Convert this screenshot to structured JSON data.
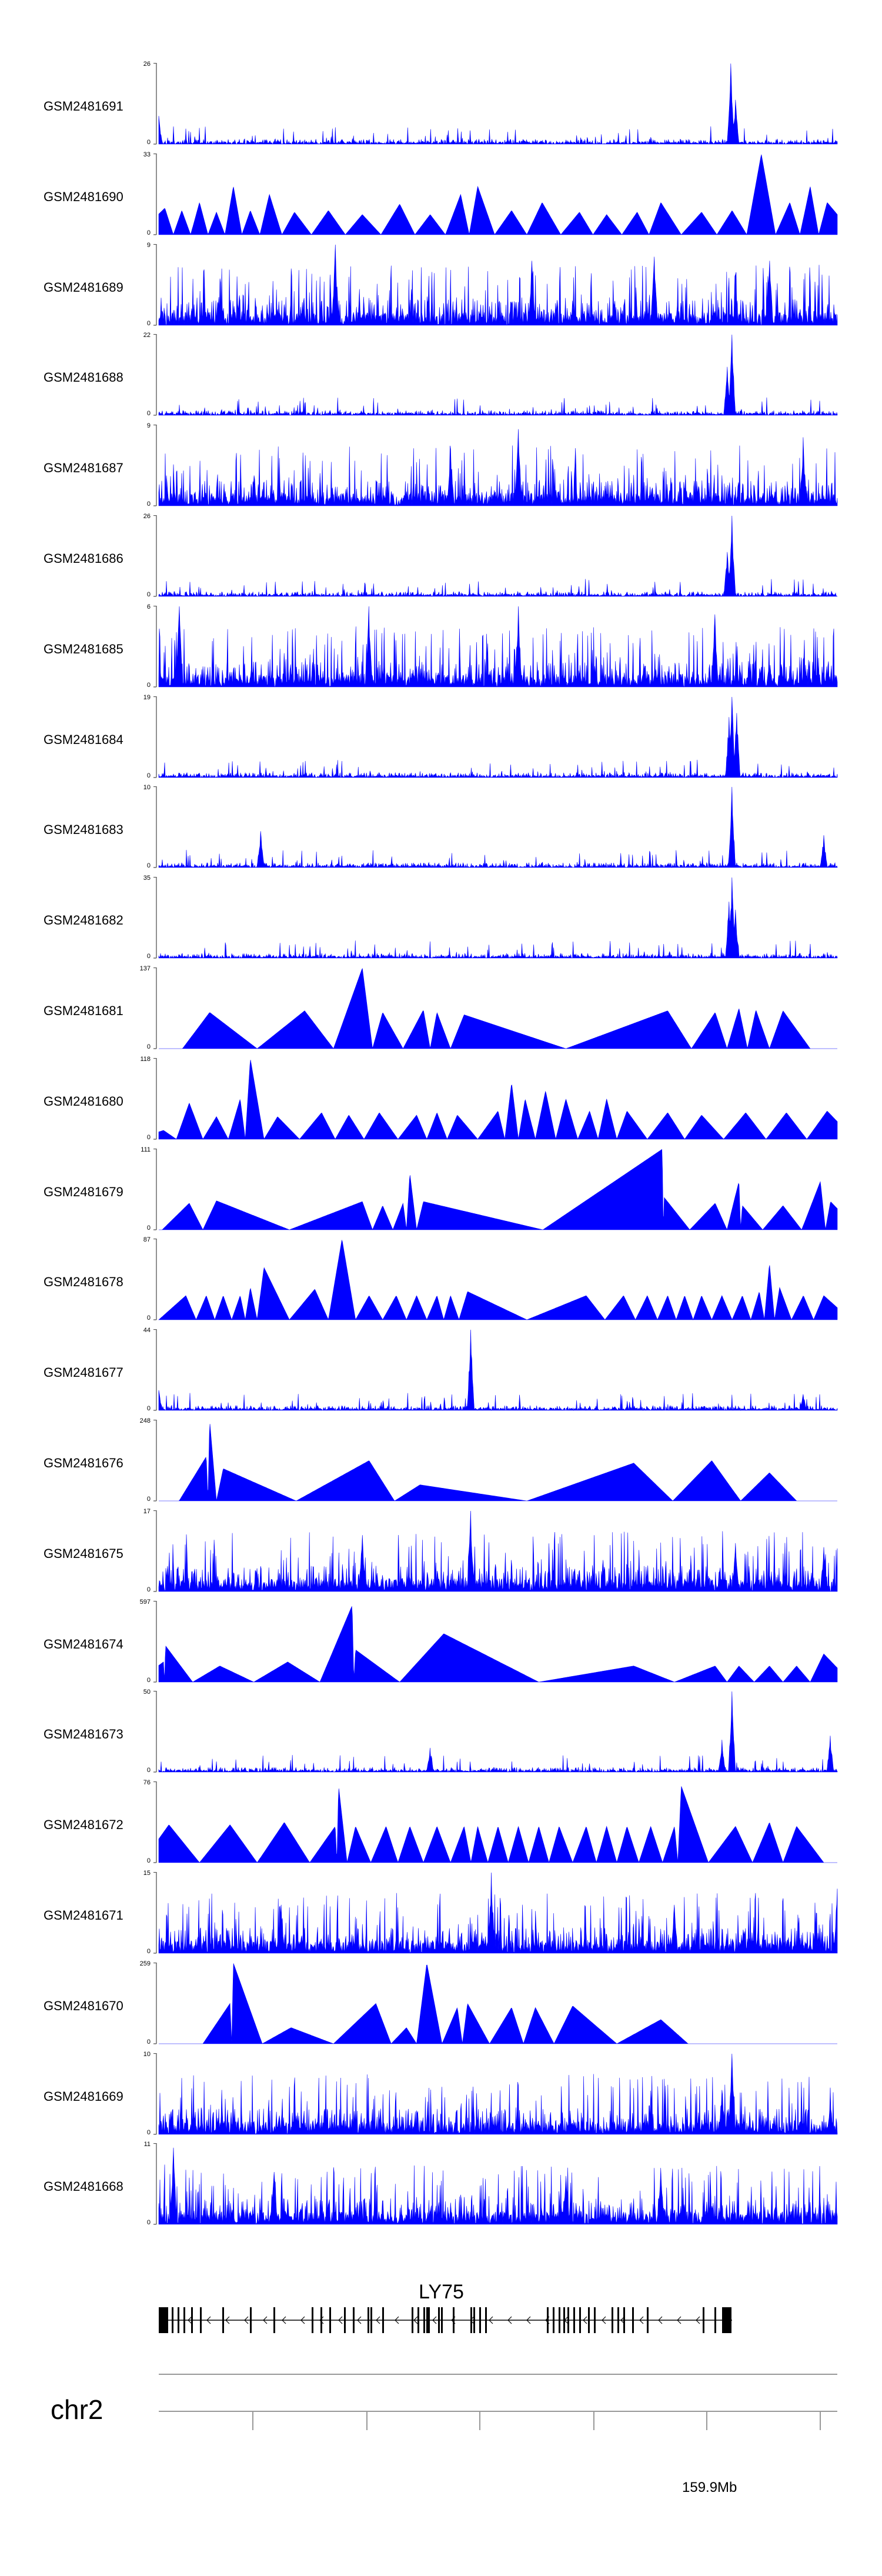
{
  "chart_data": {
    "type": "area",
    "title": "",
    "xlabel": "",
    "ylabel": "",
    "chromosome": "chr2",
    "x_tick_labels": [
      "159.9Mb"
    ],
    "gene": {
      "name": "LY75",
      "strand": "-"
    },
    "color": "#0000ff",
    "tracks": [
      {
        "name": "GSM2481691",
        "ymin": 0,
        "ymax": 26,
        "style": "spiky",
        "peaks": [
          [
            0.843,
            1.0
          ],
          [
            0.85,
            0.55
          ],
          [
            0.0,
            0.35
          ]
        ]
      },
      {
        "name": "GSM2481690",
        "ymin": 0,
        "ymax": 33,
        "style": "triangles",
        "peaks": [
          [
            0.009,
            0.33
          ],
          [
            0.034,
            0.3
          ],
          [
            0.06,
            0.4
          ],
          [
            0.085,
            0.28
          ],
          [
            0.11,
            0.6
          ],
          [
            0.135,
            0.3
          ],
          [
            0.163,
            0.5
          ],
          [
            0.2,
            0.28
          ],
          [
            0.25,
            0.3
          ],
          [
            0.3,
            0.25
          ],
          [
            0.355,
            0.38
          ],
          [
            0.4,
            0.25
          ],
          [
            0.445,
            0.5
          ],
          [
            0.47,
            0.6
          ],
          [
            0.52,
            0.3
          ],
          [
            0.565,
            0.4
          ],
          [
            0.62,
            0.28
          ],
          [
            0.66,
            0.25
          ],
          [
            0.705,
            0.28
          ],
          [
            0.74,
            0.4
          ],
          [
            0.8,
            0.28
          ],
          [
            0.845,
            0.3
          ],
          [
            0.888,
            1.0
          ],
          [
            0.93,
            0.4
          ],
          [
            0.96,
            0.6
          ],
          [
            0.985,
            0.4
          ]
        ]
      },
      {
        "name": "GSM2481689",
        "ymin": 0,
        "ymax": 9,
        "style": "dense",
        "peaks": [
          [
            0.26,
            1.0
          ],
          [
            0.55,
            0.8
          ],
          [
            0.73,
            0.85
          ],
          [
            0.9,
            0.8
          ]
        ]
      },
      {
        "name": "GSM2481688",
        "ymin": 0,
        "ymax": 22,
        "style": "spiky",
        "peaks": [
          [
            0.845,
            1.0
          ],
          [
            0.838,
            0.6
          ]
        ]
      },
      {
        "name": "GSM2481687",
        "ymin": 0,
        "ymax": 9,
        "style": "dense",
        "peaks": [
          [
            0.53,
            0.95
          ],
          [
            0.95,
            0.85
          ],
          [
            0.43,
            0.7
          ]
        ]
      },
      {
        "name": "GSM2481686",
        "ymin": 0,
        "ymax": 26,
        "style": "spiky",
        "peaks": [
          [
            0.845,
            1.0
          ],
          [
            0.838,
            0.55
          ]
        ]
      },
      {
        "name": "GSM2481685",
        "ymin": 0,
        "ymax": 6,
        "style": "dense",
        "peaks": [
          [
            0.03,
            1.0
          ],
          [
            0.31,
            1.0
          ],
          [
            0.53,
            1.0
          ],
          [
            0.82,
            0.9
          ]
        ]
      },
      {
        "name": "GSM2481684",
        "ymin": 0,
        "ymax": 19,
        "style": "spiky",
        "peaks": [
          [
            0.845,
            1.0
          ],
          [
            0.84,
            0.75
          ],
          [
            0.852,
            0.8
          ]
        ]
      },
      {
        "name": "GSM2481683",
        "ymin": 0,
        "ymax": 10,
        "style": "spiky",
        "peaks": [
          [
            0.845,
            1.0
          ],
          [
            0.15,
            0.45
          ],
          [
            0.98,
            0.4
          ]
        ]
      },
      {
        "name": "GSM2481682",
        "ymin": 0,
        "ymax": 35,
        "style": "spiky",
        "peaks": [
          [
            0.845,
            1.0
          ],
          [
            0.84,
            0.7
          ],
          [
            0.85,
            0.6
          ]
        ]
      },
      {
        "name": "GSM2481681",
        "ymin": 0,
        "ymax": 137,
        "style": "triangles",
        "peaks": [
          [
            0.075,
            0.45
          ],
          [
            0.215,
            0.47
          ],
          [
            0.3,
            1.0
          ],
          [
            0.33,
            0.45
          ],
          [
            0.39,
            0.48
          ],
          [
            0.41,
            0.45
          ],
          [
            0.45,
            0.42
          ],
          [
            0.75,
            0.47
          ],
          [
            0.82,
            0.45
          ],
          [
            0.855,
            0.5
          ],
          [
            0.88,
            0.48
          ],
          [
            0.92,
            0.47
          ]
        ]
      },
      {
        "name": "GSM2481680",
        "ymin": 0,
        "ymax": 118,
        "style": "triangles",
        "peaks": [
          [
            0.007,
            0.11
          ],
          [
            0.045,
            0.45
          ],
          [
            0.085,
            0.28
          ],
          [
            0.12,
            0.5
          ],
          [
            0.135,
            1.0
          ],
          [
            0.175,
            0.28
          ],
          [
            0.24,
            0.33
          ],
          [
            0.28,
            0.3
          ],
          [
            0.325,
            0.33
          ],
          [
            0.38,
            0.3
          ],
          [
            0.41,
            0.33
          ],
          [
            0.44,
            0.3
          ],
          [
            0.5,
            0.35
          ],
          [
            0.52,
            0.7
          ],
          [
            0.54,
            0.5
          ],
          [
            0.57,
            0.6
          ],
          [
            0.6,
            0.5
          ],
          [
            0.635,
            0.35
          ],
          [
            0.66,
            0.5
          ],
          [
            0.69,
            0.35
          ],
          [
            0.75,
            0.33
          ],
          [
            0.8,
            0.3
          ],
          [
            0.865,
            0.33
          ],
          [
            0.925,
            0.33
          ],
          [
            0.985,
            0.35
          ]
        ]
      },
      {
        "name": "GSM2481679",
        "ymin": 0,
        "ymax": 111,
        "style": "triangles",
        "peaks": [
          [
            0.045,
            0.33
          ],
          [
            0.085,
            0.36
          ],
          [
            0.3,
            0.35
          ],
          [
            0.33,
            0.3
          ],
          [
            0.36,
            0.33
          ],
          [
            0.37,
            0.7
          ],
          [
            0.39,
            0.35
          ],
          [
            0.745,
            0.4
          ],
          [
            0.742,
            1.0
          ],
          [
            0.82,
            0.33
          ],
          [
            0.855,
            0.6
          ],
          [
            0.86,
            0.3
          ],
          [
            0.92,
            0.3
          ],
          [
            0.975,
            0.6
          ],
          [
            0.99,
            0.35
          ]
        ]
      },
      {
        "name": "GSM2481678",
        "ymin": 0,
        "ymax": 87,
        "style": "triangles",
        "peaks": [
          [
            0.04,
            0.3
          ],
          [
            0.07,
            0.3
          ],
          [
            0.095,
            0.3
          ],
          [
            0.12,
            0.3
          ],
          [
            0.135,
            0.4
          ],
          [
            0.155,
            0.65
          ],
          [
            0.23,
            0.38
          ],
          [
            0.27,
            1.0
          ],
          [
            0.31,
            0.3
          ],
          [
            0.35,
            0.3
          ],
          [
            0.38,
            0.3
          ],
          [
            0.41,
            0.3
          ],
          [
            0.43,
            0.3
          ],
          [
            0.455,
            0.35
          ],
          [
            0.63,
            0.3
          ],
          [
            0.685,
            0.3
          ],
          [
            0.72,
            0.3
          ],
          [
            0.75,
            0.3
          ],
          [
            0.775,
            0.3
          ],
          [
            0.8,
            0.3
          ],
          [
            0.83,
            0.3
          ],
          [
            0.86,
            0.3
          ],
          [
            0.885,
            0.35
          ],
          [
            0.9,
            0.7
          ],
          [
            0.915,
            0.4
          ],
          [
            0.95,
            0.3
          ],
          [
            0.98,
            0.3
          ]
        ]
      },
      {
        "name": "GSM2481677",
        "ymin": 0,
        "ymax": 44,
        "style": "spiky",
        "peaks": [
          [
            0.46,
            1.0
          ],
          [
            0.0,
            0.25
          ],
          [
            0.95,
            0.2
          ]
        ]
      },
      {
        "name": "GSM2481676",
        "ymin": 0,
        "ymax": 248,
        "style": "triangles",
        "peaks": [
          [
            0.07,
            0.55
          ],
          [
            0.075,
            1.0
          ],
          [
            0.095,
            0.4
          ],
          [
            0.31,
            0.5
          ],
          [
            0.385,
            0.2
          ],
          [
            0.7,
            0.47
          ],
          [
            0.815,
            0.5
          ],
          [
            0.9,
            0.35
          ]
        ]
      },
      {
        "name": "GSM2481675",
        "ymin": 0,
        "ymax": 17,
        "style": "dense",
        "peaks": [
          [
            0.46,
            1.0
          ],
          [
            0.3,
            0.7
          ],
          [
            0.85,
            0.6
          ],
          [
            0.98,
            0.55
          ]
        ]
      },
      {
        "name": "GSM2481674",
        "ymin": 0,
        "ymax": 597,
        "style": "triangles",
        "peaks": [
          [
            0.007,
            0.25
          ],
          [
            0.01,
            0.45
          ],
          [
            0.09,
            0.2
          ],
          [
            0.19,
            0.25
          ],
          [
            0.29,
            0.4
          ],
          [
            0.285,
            0.95
          ],
          [
            0.42,
            0.6
          ],
          [
            0.7,
            0.2
          ],
          [
            0.82,
            0.2
          ],
          [
            0.855,
            0.2
          ],
          [
            0.9,
            0.2
          ],
          [
            0.94,
            0.2
          ],
          [
            0.98,
            0.35
          ]
        ]
      },
      {
        "name": "GSM2481673",
        "ymin": 0,
        "ymax": 50,
        "style": "spiky",
        "peaks": [
          [
            0.845,
            1.0
          ],
          [
            0.83,
            0.4
          ],
          [
            0.99,
            0.45
          ],
          [
            0.4,
            0.3
          ]
        ]
      },
      {
        "name": "GSM2481672",
        "ymin": 0,
        "ymax": 76,
        "style": "triangles",
        "peaks": [
          [
            0.015,
            0.47
          ],
          [
            0.105,
            0.47
          ],
          [
            0.185,
            0.5
          ],
          [
            0.26,
            0.45
          ],
          [
            0.265,
            0.95
          ],
          [
            0.29,
            0.45
          ],
          [
            0.335,
            0.45
          ],
          [
            0.37,
            0.45
          ],
          [
            0.41,
            0.45
          ],
          [
            0.45,
            0.45
          ],
          [
            0.47,
            0.45
          ],
          [
            0.5,
            0.45
          ],
          [
            0.53,
            0.45
          ],
          [
            0.56,
            0.45
          ],
          [
            0.59,
            0.45
          ],
          [
            0.63,
            0.45
          ],
          [
            0.66,
            0.45
          ],
          [
            0.69,
            0.45
          ],
          [
            0.725,
            0.45
          ],
          [
            0.76,
            0.45
          ],
          [
            0.77,
            0.95
          ],
          [
            0.85,
            0.45
          ],
          [
            0.9,
            0.5
          ],
          [
            0.94,
            0.45
          ]
        ]
      },
      {
        "name": "GSM2481671",
        "ymin": 0,
        "ymax": 15,
        "style": "dense",
        "peaks": [
          [
            0.49,
            1.0
          ],
          [
            1.0,
            0.8
          ],
          [
            0.18,
            0.6
          ],
          [
            0.76,
            0.6
          ]
        ]
      },
      {
        "name": "GSM2481670",
        "ymin": 0,
        "ymax": 259,
        "style": "triangles",
        "peaks": [
          [
            0.11,
            1.0
          ],
          [
            0.105,
            0.5
          ],
          [
            0.195,
            0.2
          ],
          [
            0.32,
            0.5
          ],
          [
            0.365,
            0.2
          ],
          [
            0.395,
            1.0
          ],
          [
            0.44,
            0.45
          ],
          [
            0.455,
            0.5
          ],
          [
            0.52,
            0.45
          ],
          [
            0.555,
            0.45
          ],
          [
            0.61,
            0.47
          ],
          [
            0.74,
            0.3
          ]
        ]
      },
      {
        "name": "GSM2481669",
        "ymin": 0,
        "ymax": 10,
        "style": "dense",
        "peaks": [
          [
            0.845,
            1.0
          ],
          [
            0.83,
            0.55
          ],
          [
            0.99,
            0.4
          ]
        ]
      },
      {
        "name": "GSM2481668",
        "ymin": 0,
        "ymax": 11,
        "style": "dense",
        "peaks": [
          [
            0.022,
            0.95
          ],
          [
            0.17,
            0.65
          ],
          [
            0.6,
            0.6
          ],
          [
            0.74,
            0.7
          ]
        ]
      }
    ]
  }
}
